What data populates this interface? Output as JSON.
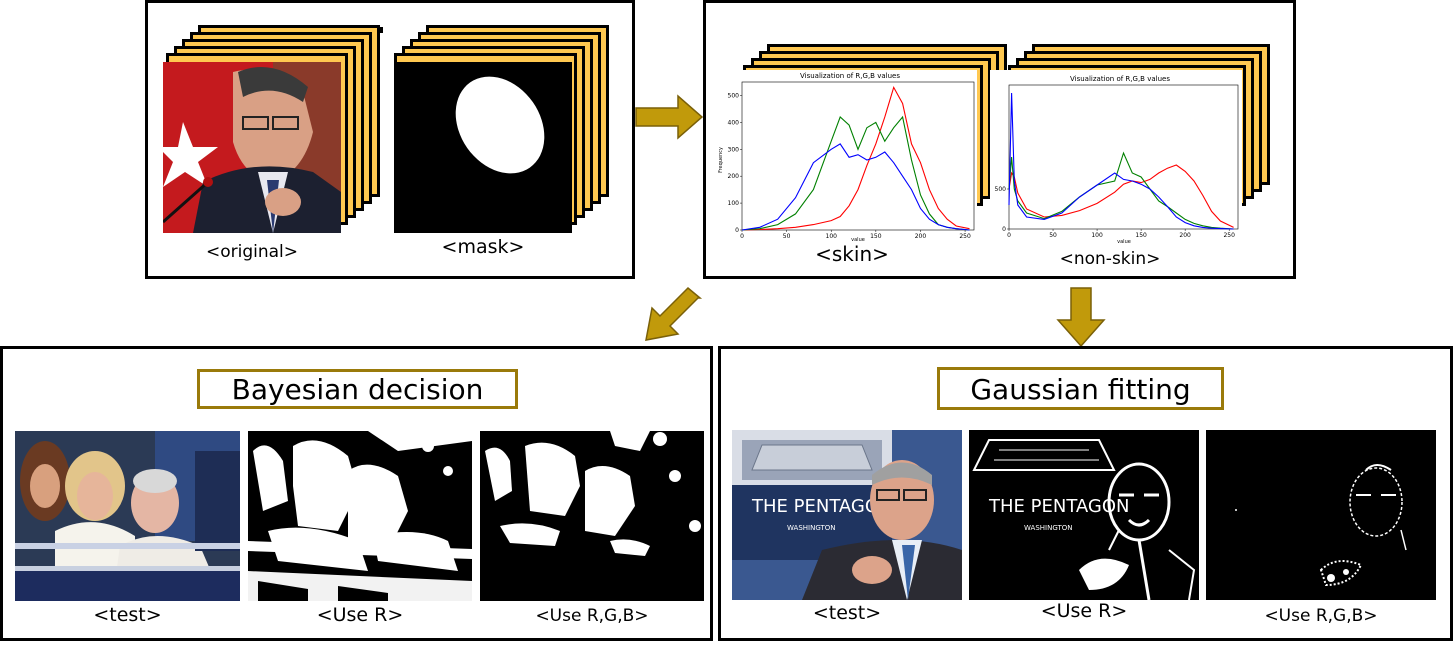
{
  "top": {
    "original_caption": "<original>",
    "mask_caption": "<mask>",
    "skin_caption": "<skin>",
    "nonskin_caption": "<non-skin>",
    "skin_chart_title": "Visualization of R,G,B values",
    "nonskin_chart_title": "Visualization of R,G,B values",
    "skin_ylabel": "Frequency",
    "skin_xlabel": "value",
    "nonskin_xlabel": "value"
  },
  "bayes": {
    "title": "Bayesian decision",
    "test_caption": "<test>",
    "r_caption": "<Use R>",
    "rgb_caption": "<Use R,G,B>"
  },
  "gauss": {
    "title": "Gaussian fitting",
    "test_caption": "<test>",
    "r_caption": "<Use R>",
    "rgb_caption": "<Use R,G,B>",
    "sign_line1": "THE PENTAGON",
    "sign_line2": "WASHINGTON"
  },
  "colors": {
    "arrow": "#c19a0b",
    "stack_fill": "#ffc850",
    "title_border": "#9a7a0a"
  },
  "chart_data": [
    {
      "type": "line",
      "title": "Visualization of R,G,B values",
      "xlabel": "value",
      "ylabel": "Frequency",
      "xlim": [
        0,
        260
      ],
      "ylim": [
        0,
        550
      ],
      "xticks": [
        0,
        50,
        100,
        150,
        200,
        250
      ],
      "yticks": [
        0,
        100,
        200,
        300,
        400,
        500
      ],
      "x": [
        0,
        20,
        40,
        60,
        80,
        100,
        110,
        120,
        130,
        140,
        150,
        160,
        170,
        180,
        190,
        200,
        210,
        220,
        230,
        240,
        255
      ],
      "series": [
        {
          "color": "red",
          "values": [
            0,
            2,
            5,
            10,
            20,
            35,
            50,
            90,
            150,
            240,
            320,
            420,
            530,
            470,
            320,
            250,
            150,
            80,
            40,
            15,
            5
          ]
        },
        {
          "color": "green",
          "values": [
            0,
            5,
            20,
            60,
            150,
            330,
            420,
            390,
            300,
            380,
            400,
            330,
            380,
            420,
            260,
            130,
            60,
            20,
            10,
            5,
            0
          ]
        },
        {
          "color": "blue",
          "values": [
            0,
            10,
            40,
            120,
            250,
            300,
            320,
            270,
            280,
            260,
            270,
            290,
            250,
            200,
            150,
            80,
            40,
            20,
            10,
            5,
            0
          ]
        }
      ]
    },
    {
      "type": "line",
      "title": "Visualization of R,G,B values",
      "xlabel": "value",
      "xlim": [
        0,
        260
      ],
      "ylim": [
        0,
        1800
      ],
      "xticks": [
        0,
        50,
        100,
        150,
        200,
        250
      ],
      "yticks": [
        0,
        500
      ],
      "x": [
        0,
        3,
        6,
        10,
        20,
        40,
        60,
        80,
        100,
        120,
        130,
        140,
        150,
        160,
        170,
        180,
        190,
        200,
        210,
        220,
        230,
        240,
        255
      ],
      "series": [
        {
          "color": "red",
          "values": [
            500,
            700,
            650,
            450,
            250,
            150,
            170,
            230,
            320,
            460,
            560,
            600,
            580,
            620,
            700,
            760,
            800,
            720,
            600,
            420,
            220,
            100,
            20
          ]
        },
        {
          "color": "green",
          "values": [
            500,
            900,
            500,
            350,
            200,
            130,
            220,
            400,
            550,
            600,
            950,
            700,
            650,
            500,
            350,
            280,
            200,
            120,
            70,
            40,
            20,
            10,
            0
          ]
        },
        {
          "color": "blue",
          "values": [
            300,
            1700,
            600,
            300,
            150,
            120,
            200,
            400,
            550,
            700,
            620,
            600,
            560,
            500,
            400,
            280,
            150,
            80,
            40,
            20,
            10,
            5,
            0
          ]
        }
      ]
    }
  ]
}
